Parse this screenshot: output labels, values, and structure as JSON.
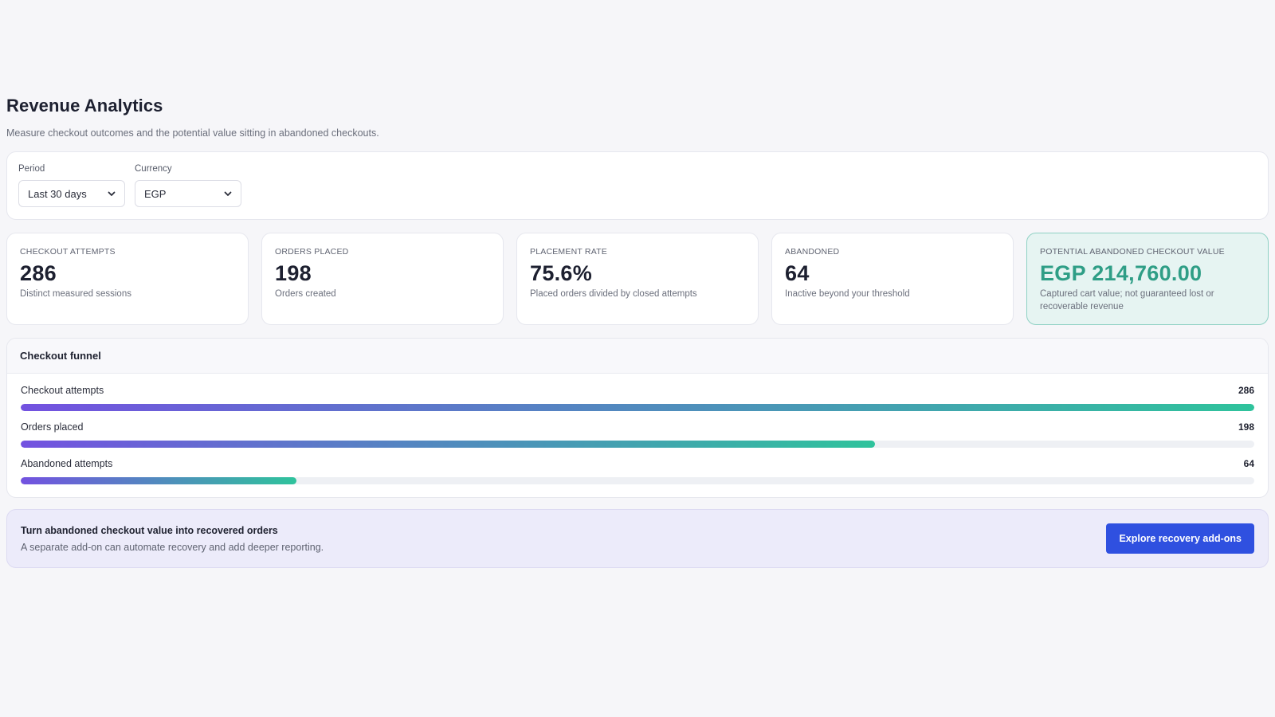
{
  "header": {
    "title": "Revenue Analytics",
    "subtitle": "Measure checkout outcomes and the potential value sitting in abandoned checkouts."
  },
  "filters": {
    "period": {
      "label": "Period",
      "value": "Last 30 days",
      "icon": "chevron-down-icon"
    },
    "currency": {
      "label": "Currency",
      "value": "EGP",
      "icon": "chevron-down-icon"
    }
  },
  "cards": [
    {
      "label": "Checkout attempts",
      "value": "286",
      "sub": "Distinct measured sessions"
    },
    {
      "label": "Orders placed",
      "value": "198",
      "sub": "Orders created"
    },
    {
      "label": "Placement rate",
      "value": "75.6%",
      "sub": "Placed orders divided by closed attempts"
    },
    {
      "label": "Abandoned",
      "value": "64",
      "sub": "Inactive beyond your threshold"
    },
    {
      "label": "Potential abandoned checkout value",
      "value": "EGP 214,760.00",
      "sub": "Captured cart value; not guaranteed lost or recoverable revenue"
    }
  ],
  "funnel": {
    "title": "Checkout funnel",
    "rows": [
      {
        "label": "Checkout attempts",
        "count": "286",
        "value": 286
      },
      {
        "label": "Orders placed",
        "count": "198",
        "value": 198
      },
      {
        "label": "Abandoned attempts",
        "count": "64",
        "value": 64
      }
    ],
    "max": 286,
    "gradient": [
      "#7352e0",
      "#2fc39c"
    ]
  },
  "promo": {
    "title": "Turn abandoned checkout value into recovered orders",
    "description": "A separate add-on can automate recovery and add deeper reporting.",
    "button": "Explore recovery add-ons"
  },
  "colors": {
    "accent": "#2f50e0",
    "highlight_value": "#2f9e86",
    "highlight_bg": "#e6f4f2",
    "promo_bg": "#ecebfa"
  }
}
